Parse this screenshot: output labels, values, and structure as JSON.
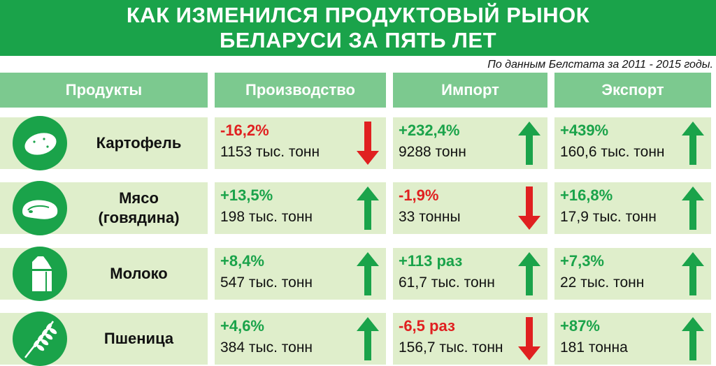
{
  "title": {
    "line1": "КАК ИЗМЕНИЛСЯ ПРОДУКТОВЫЙ РЫНОК",
    "line2": "БЕЛАРУСИ ЗА ПЯТЬ ЛЕТ"
  },
  "source": "По данным Белстата за 2011 - 2015 годы.",
  "columns": {
    "products": "Продукты",
    "production": "Производство",
    "import": "Импорт",
    "export": "Экспорт"
  },
  "colors": {
    "green": "#1aa34a",
    "light_green": "#7cc98f",
    "cell_bg": "#dfeecb",
    "red": "#e02020"
  },
  "rows": [
    {
      "icon": "potato-icon",
      "name_line1": "Картофель",
      "name_line2": "",
      "production": {
        "pct": "-16,2%",
        "amount": "1153 тыс. тонн",
        "trend": "down"
      },
      "import": {
        "pct": "+232,4%",
        "amount": "9288 тонн",
        "trend": "up"
      },
      "export": {
        "pct": "+439%",
        "amount": "160,6 тыс. тонн",
        "trend": "up"
      }
    },
    {
      "icon": "meat-icon",
      "name_line1": "Мясо",
      "name_line2": "(говядина)",
      "production": {
        "pct": "+13,5%",
        "amount": "198 тыс. тонн",
        "trend": "up"
      },
      "import": {
        "pct": "-1,9%",
        "amount": "33 тонны",
        "trend": "down"
      },
      "export": {
        "pct": "+16,8%",
        "amount": "17,9 тыс. тонн",
        "trend": "up"
      }
    },
    {
      "icon": "milk-carton-icon",
      "name_line1": "Молоко",
      "name_line2": "",
      "production": {
        "pct": "+8,4%",
        "amount": "547 тыс. тонн",
        "trend": "up"
      },
      "import": {
        "pct": "+113 раз",
        "amount": "61,7 тыс. тонн",
        "trend": "up"
      },
      "export": {
        "pct": "+7,3%",
        "amount": "22 тыс. тонн",
        "trend": "up"
      }
    },
    {
      "icon": "wheat-icon",
      "name_line1": "Пшеница",
      "name_line2": "",
      "production": {
        "pct": "+4,6%",
        "amount": "384 тыс. тонн",
        "trend": "up"
      },
      "import": {
        "pct": "-6,5 раз",
        "amount": "156,7 тыс. тонн",
        "trend": "down"
      },
      "export": {
        "pct": "+87%",
        "amount": "181 тонна",
        "trend": "up"
      }
    }
  ]
}
